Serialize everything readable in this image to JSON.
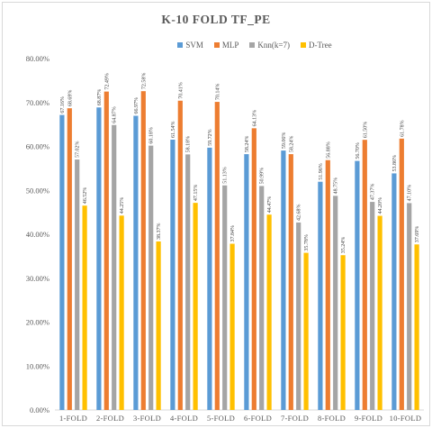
{
  "chart_data": {
    "type": "bar",
    "title": "K-10 FOLD TF_PE",
    "xlabel": "",
    "ylabel": "",
    "ylim": [
      0,
      80
    ],
    "yticks": [
      "0.00%",
      "10.00%",
      "20.00%",
      "30.00%",
      "40.00%",
      "50.00%",
      "60.00%",
      "70.00%",
      "80.00%"
    ],
    "grid": false,
    "legend_position": "top",
    "categories": [
      "1-FOLD",
      "2-FOLD",
      "3-FOLD",
      "4-FOLD",
      "5-FOLD",
      "6-FOLD",
      "7-FOLD",
      "8-FOLD",
      "9-FOLD",
      "10-FOLD"
    ],
    "series": [
      {
        "name": "SVM",
        "color": "#5b9bd5",
        "values": [
          67.16,
          68.87,
          66.97,
          61.54,
          59.72,
          58.24,
          59.06,
          51.96,
          56.7,
          53.86
        ],
        "labels": [
          "67.16%",
          "68.87%",
          "66.97%",
          "61.54%",
          "59.72%",
          "58.24%",
          "59.06%",
          "51.96%",
          "56.70%",
          "53.86%"
        ]
      },
      {
        "name": "MLP",
        "color": "#ed7d31",
        "values": [
          68.69,
          72.49,
          72.58,
          70.41,
          70.14,
          64.13,
          58.24,
          56.88,
          61.5,
          61.78
        ],
        "labels": [
          "68.69%",
          "72.49%",
          "72.58%",
          "70.41%",
          "70.14%",
          "64.13%",
          "58.24%",
          "56.88%",
          "61.50%",
          "61.78%"
        ]
      },
      {
        "name": "Knn(k=7)",
        "color": "#a5a5a5",
        "values": [
          57.02,
          64.87,
          60.18,
          58.18,
          51.13,
          50.99,
          42.68,
          48.75,
          47.37,
          47.1
        ],
        "labels": [
          "57.02%",
          "64.87%",
          "60.18%",
          "58.18%",
          "51.13%",
          "50.99%",
          "42.68%",
          "48.75%",
          "47.37%",
          "47.10%"
        ]
      },
      {
        "name": "D-Tree",
        "color": "#ffc000",
        "values": [
          46.52,
          44.25,
          38.37,
          47.15,
          37.84,
          44.47,
          35.78,
          35.24,
          44.2,
          37.69
        ],
        "labels": [
          "46.52%",
          "44.25%",
          "38.37%",
          "47.15%",
          "37.84%",
          "44.47%",
          "35.78%",
          "35.24%",
          "44.20%",
          "37.69%"
        ]
      }
    ]
  }
}
